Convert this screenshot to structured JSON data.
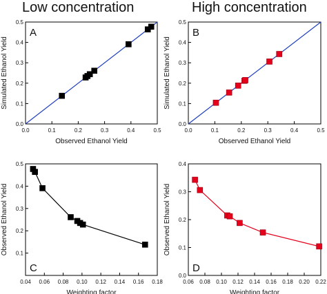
{
  "headers": {
    "left": "Low concentration",
    "right": "High concentration"
  },
  "colors": {
    "black_marker": "#000000",
    "red_marker": "#e5001b",
    "diag_line": "#1f3fbf",
    "red_line": "#e5001b"
  },
  "chart_data": [
    {
      "id": "A",
      "type": "scatter",
      "panel_label": "A",
      "xlabel": "Observed Ethanol Yield",
      "ylabel": "Simulated Ethanol Yield",
      "xlim": [
        0,
        0.5
      ],
      "ylim": [
        0,
        0.5
      ],
      "xticks": [
        "0.0",
        "0.1",
        "0.2",
        "0.3",
        "0.4",
        "0.5"
      ],
      "yticks": [
        "0.0",
        "0.1",
        "0.2",
        "0.3",
        "0.4",
        "0.5"
      ],
      "xtick_values": [
        0,
        0.1,
        0.2,
        0.3,
        0.4,
        0.5
      ],
      "ytick_values": [
        0,
        0.1,
        0.2,
        0.3,
        0.4,
        0.5
      ],
      "diagonal": true,
      "marker_color": "#000000",
      "x": [
        0.138,
        0.228,
        0.235,
        0.244,
        0.261,
        0.391,
        0.464,
        0.477
      ],
      "y": [
        0.138,
        0.228,
        0.235,
        0.244,
        0.261,
        0.391,
        0.464,
        0.477
      ]
    },
    {
      "id": "B",
      "type": "scatter",
      "panel_label": "B",
      "xlabel": "Observed Ethanol Yield",
      "ylabel": "Simulated Ethanol Yield",
      "xlim": [
        0,
        0.5
      ],
      "ylim": [
        0,
        0.5
      ],
      "xticks": [
        "0.0",
        "0.1",
        "0.2",
        "0.3",
        "0.4",
        "0.5"
      ],
      "yticks": [
        "0.0",
        "0.1",
        "0.2",
        "0.3",
        "0.4",
        "0.5"
      ],
      "xtick_values": [
        0,
        0.1,
        0.2,
        0.3,
        0.4,
        0.5
      ],
      "ytick_values": [
        0,
        0.1,
        0.2,
        0.3,
        0.4,
        0.5
      ],
      "diagonal": true,
      "marker_color": "#e5001b",
      "x": [
        0.104,
        0.154,
        0.188,
        0.212,
        0.215,
        0.306,
        0.343
      ],
      "y": [
        0.104,
        0.154,
        0.188,
        0.212,
        0.215,
        0.306,
        0.343
      ]
    },
    {
      "id": "C",
      "type": "line",
      "panel_label": "C",
      "xlabel": "Weighting factor",
      "ylabel": "Observed Ethanol Yield",
      "xlim": [
        0.04,
        0.18
      ],
      "ylim": [
        0,
        0.5
      ],
      "xticks": [
        "0.04",
        "0.06",
        "0.08",
        "0.10",
        "0.12",
        "0.14",
        "0.16",
        "0.18"
      ],
      "yticks": [
        "0.1",
        "0.2",
        "0.3",
        "0.4",
        "0.5"
      ],
      "xtick_values": [
        0.04,
        0.06,
        0.08,
        0.1,
        0.12,
        0.14,
        0.16,
        0.18
      ],
      "ytick_values": [
        0.1,
        0.2,
        0.3,
        0.4,
        0.5
      ],
      "marker_color": "#000000",
      "line_color": "#000000",
      "x": [
        0.048,
        0.05,
        0.058,
        0.088,
        0.095,
        0.098,
        0.101,
        0.167
      ],
      "y": [
        0.477,
        0.464,
        0.391,
        0.261,
        0.244,
        0.235,
        0.228,
        0.138
      ]
    },
    {
      "id": "D",
      "type": "line",
      "panel_label": "D",
      "xlabel": "Weighting factor",
      "ylabel": "Observed Ethanol Yield",
      "xlim": [
        0.06,
        0.22
      ],
      "ylim": [
        0,
        0.4
      ],
      "xticks": [
        "0.06",
        "0.08",
        "0.10",
        "0.12",
        "0.14",
        "0.16",
        "0.18",
        "0.20",
        "0.22"
      ],
      "yticks": [
        "0.0",
        "0.1",
        "0.2",
        "0.3",
        "0.4"
      ],
      "xtick_values": [
        0.06,
        0.08,
        0.1,
        0.12,
        0.14,
        0.16,
        0.18,
        0.2,
        0.22
      ],
      "ytick_values": [
        0,
        0.1,
        0.2,
        0.3,
        0.4
      ],
      "marker_color": "#e5001b",
      "line_color": "#e5001b",
      "x": [
        0.068,
        0.074,
        0.107,
        0.11,
        0.122,
        0.15,
        0.218
      ],
      "y": [
        0.343,
        0.306,
        0.215,
        0.212,
        0.188,
        0.154,
        0.104
      ]
    }
  ]
}
